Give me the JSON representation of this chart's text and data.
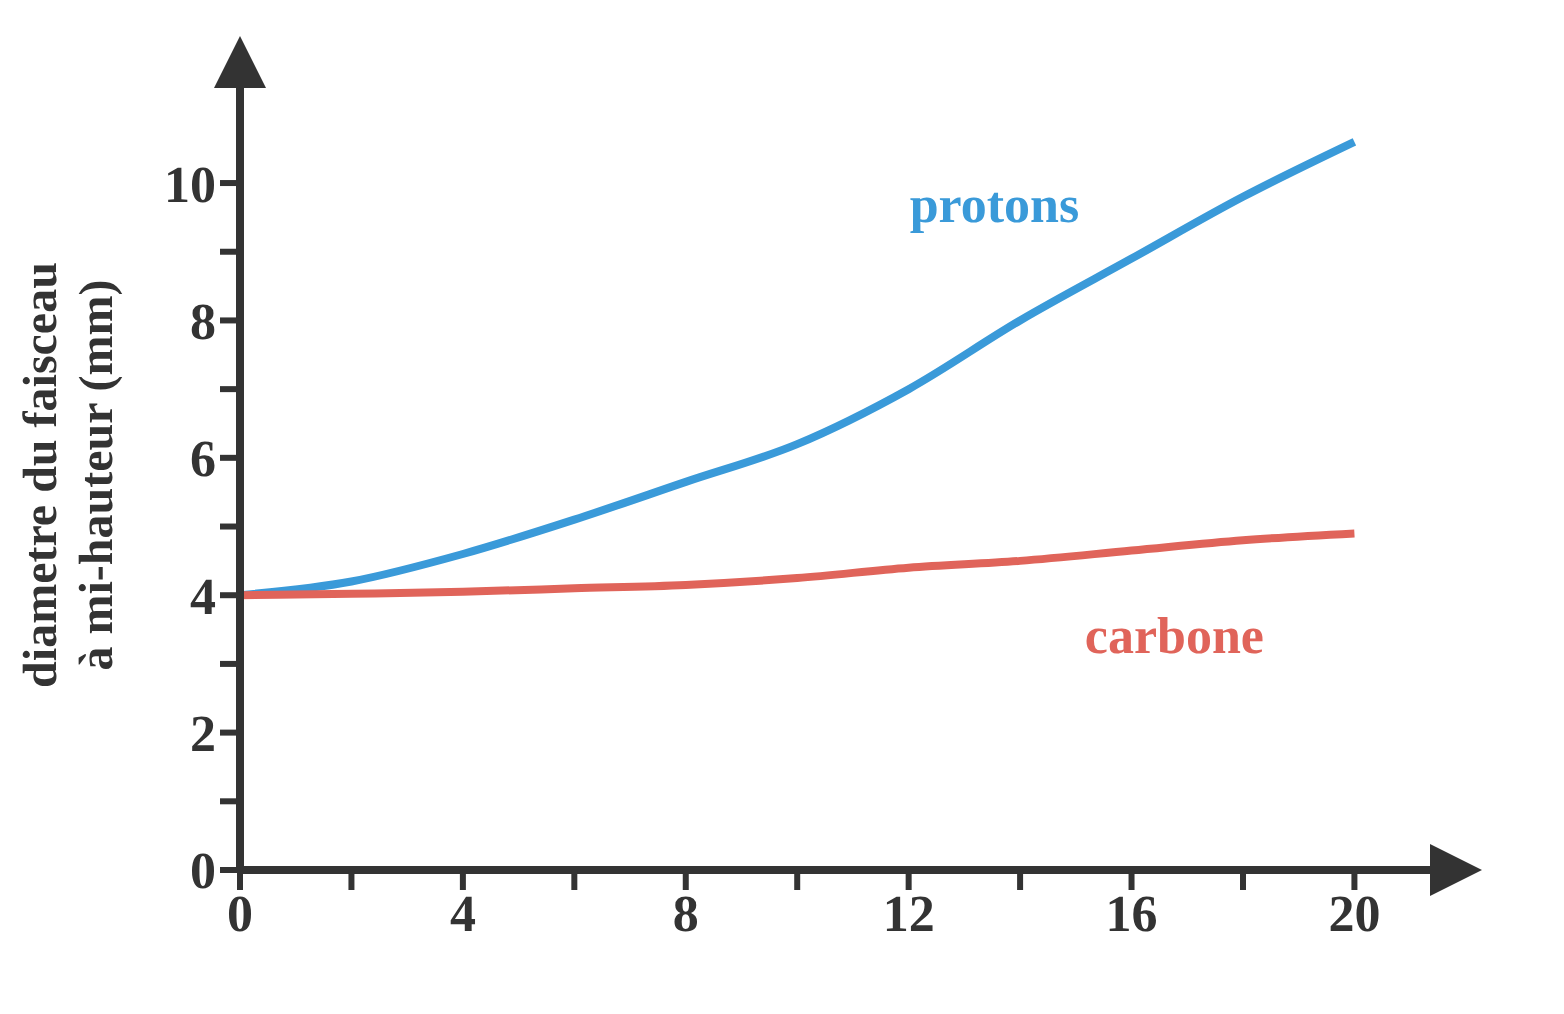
{
  "chart_data": {
    "type": "line",
    "ylabel": "diametre du faisceau à mi-hauteur (mm)",
    "x": [
      0,
      2,
      4,
      6,
      8,
      10,
      12,
      14,
      16,
      18,
      20
    ],
    "series": [
      {
        "name": "protons",
        "color": "#3a9ad9",
        "values": [
          4.0,
          4.2,
          4.6,
          5.1,
          5.65,
          6.2,
          7.0,
          8.0,
          8.9,
          9.8,
          10.6
        ]
      },
      {
        "name": "carbone",
        "color": "#e0645a",
        "values": [
          4.0,
          4.02,
          4.05,
          4.1,
          4.15,
          4.25,
          4.4,
          4.5,
          4.65,
          4.8,
          4.9
        ]
      }
    ],
    "xlim": [
      0,
      21.5
    ],
    "ylim": [
      0,
      11.5
    ],
    "xticks": [
      0,
      {
        "value": 2,
        "label": null
      },
      4,
      {
        "value": 6,
        "label": null
      },
      8,
      {
        "value": 10,
        "label": null
      },
      12,
      {
        "value": 14,
        "label": null
      },
      16,
      {
        "value": 18,
        "label": null
      },
      20
    ],
    "yticks": [
      0,
      {
        "value": 1,
        "label": null
      },
      2,
      {
        "value": 3,
        "label": null
      },
      4,
      {
        "value": 5,
        "label": null
      },
      6,
      {
        "value": 7,
        "label": null
      },
      8,
      {
        "value": 9,
        "label": null
      },
      10
    ],
    "grid": false,
    "legend": false,
    "marker": "none",
    "line_style": "solid"
  }
}
